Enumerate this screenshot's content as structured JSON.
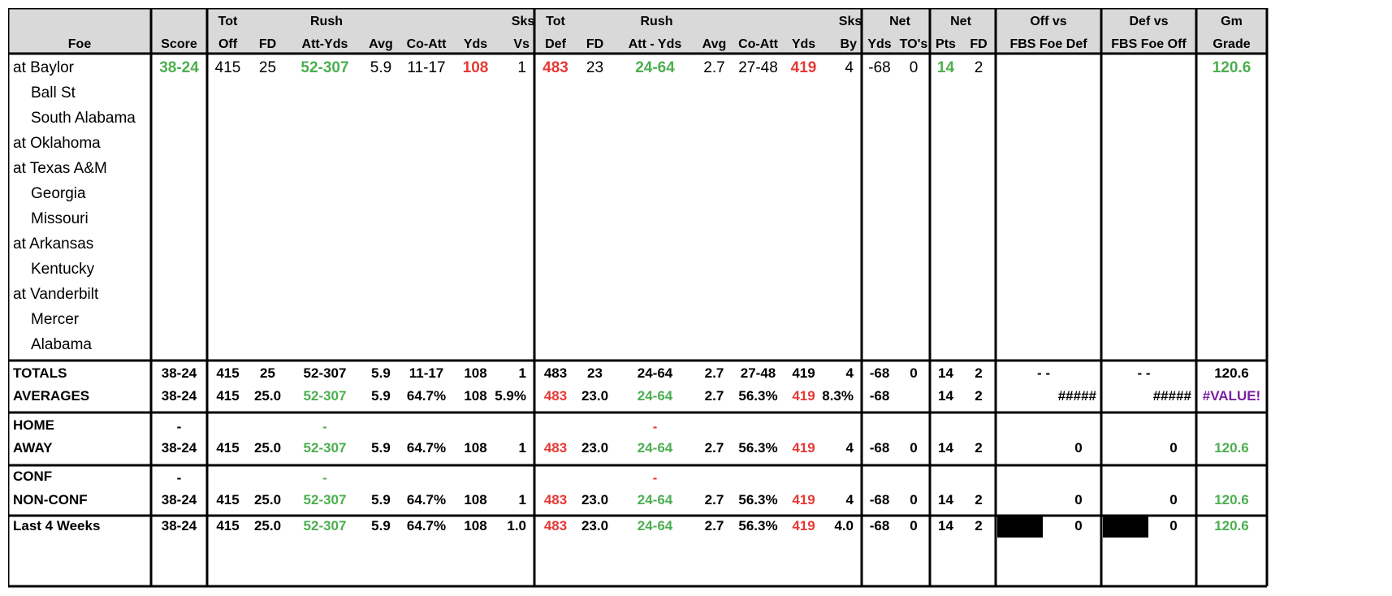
{
  "colors": {
    "header_bg": "#D9D9D9",
    "grid": "#000000",
    "green": "#4CAF50",
    "red": "#E53935",
    "purple": "#7B1FA2",
    "black_fill": "#000000",
    "yellow_marker": "#FFF59D",
    "text": "#000000"
  },
  "header": {
    "row1": [
      "",
      "",
      "Tot",
      "",
      "Rush",
      "",
      "",
      "",
      "Sks",
      "Tot",
      "",
      "Rush",
      "",
      "",
      "",
      "Sks",
      "Net",
      "",
      "Net",
      "",
      "Off vs",
      "Def vs",
      "Gm"
    ],
    "row2": [
      "Foe",
      "Score",
      "Off",
      "FD",
      "Att-Yds",
      "Avg",
      "Co-Att",
      "Yds",
      "Vs",
      "Def",
      "FD",
      "Att - Yds",
      "Avg",
      "Co-Att",
      "Yds",
      "By",
      "Yds",
      "TO's",
      "Pts",
      "FD",
      "FBS Foe Def",
      "FBS Foe Off",
      "Grade"
    ]
  },
  "games": [
    {
      "foe": "at Baylor",
      "indent": false,
      "cells": [
        {
          "t": "38-24",
          "c": "green",
          "b": true
        },
        {
          "t": "415"
        },
        {
          "t": "25"
        },
        {
          "t": "52-307",
          "c": "green",
          "b": true
        },
        {
          "t": "5.9"
        },
        {
          "t": "11-17"
        },
        {
          "t": "108",
          "c": "red",
          "b": true
        },
        {
          "t": "1"
        },
        {
          "t": "483",
          "c": "red",
          "b": true
        },
        {
          "t": "23"
        },
        {
          "t": "24-64",
          "c": "green",
          "b": true
        },
        {
          "t": "2.7"
        },
        {
          "t": "27-48"
        },
        {
          "t": "419",
          "c": "red",
          "b": true
        },
        {
          "t": "4"
        },
        {
          "t": "-68"
        },
        {
          "t": "0"
        },
        {
          "t": "14",
          "c": "green",
          "b": true
        },
        {
          "t": "2"
        },
        {
          "t": ""
        },
        {
          "t": ""
        },
        {
          "t": "120.6",
          "c": "green",
          "b": true
        }
      ]
    },
    {
      "foe": "Ball St",
      "indent": true,
      "cells": []
    },
    {
      "foe": "South Alabama",
      "indent": true,
      "cells": []
    },
    {
      "foe": "at Oklahoma",
      "indent": false,
      "cells": []
    },
    {
      "foe": "at Texas A&M",
      "indent": false,
      "cells": []
    },
    {
      "foe": "Georgia",
      "indent": true,
      "cells": []
    },
    {
      "foe": "Missouri",
      "indent": true,
      "cells": []
    },
    {
      "foe": "at Arkansas",
      "indent": false,
      "cells": []
    },
    {
      "foe": "Kentucky",
      "indent": true,
      "cells": []
    },
    {
      "foe": "at Vanderbilt",
      "indent": false,
      "cells": []
    },
    {
      "foe": "Mercer",
      "indent": true,
      "cells": []
    },
    {
      "foe": "Alabama",
      "indent": true,
      "cells": []
    }
  ],
  "summary": [
    {
      "label": "TOTALS",
      "group": "totals",
      "cells": [
        {
          "t": "38-24"
        },
        {
          "t": "415"
        },
        {
          "t": "25"
        },
        {
          "t": "52-307"
        },
        {
          "t": "5.9"
        },
        {
          "t": "11-17"
        },
        {
          "t": "108"
        },
        {
          "t": "1"
        },
        {
          "t": "483"
        },
        {
          "t": "23"
        },
        {
          "t": "24-64"
        },
        {
          "t": "2.7"
        },
        {
          "t": "27-48"
        },
        {
          "t": "419"
        },
        {
          "t": "4"
        },
        {
          "t": "-68"
        },
        {
          "t": "0"
        },
        {
          "t": "14"
        },
        {
          "t": "2"
        },
        {
          "t": "-         -",
          "a": "mid"
        },
        {
          "t": "-         -",
          "a": "mid"
        },
        {
          "t": "120.6"
        }
      ]
    },
    {
      "label": "AVERAGES",
      "group": "totals",
      "cells": [
        {
          "t": "38-24"
        },
        {
          "t": "415"
        },
        {
          "t": "25.0"
        },
        {
          "t": "52-307",
          "c": "green"
        },
        {
          "t": "5.9"
        },
        {
          "t": "64.7%"
        },
        {
          "t": "108"
        },
        {
          "t": "5.9%"
        },
        {
          "t": "483",
          "c": "red"
        },
        {
          "t": "23.0"
        },
        {
          "t": "24-64",
          "c": "green"
        },
        {
          "t": "2.7"
        },
        {
          "t": "56.3%"
        },
        {
          "t": "419",
          "c": "red"
        },
        {
          "t": "8.3%"
        },
        {
          "t": "-68"
        },
        {
          "t": ""
        },
        {
          "t": "14"
        },
        {
          "t": "2"
        },
        {
          "t": "#####",
          "a": "end"
        },
        {
          "t": "#####",
          "a": "end"
        },
        {
          "t": "#VALUE!",
          "c": "purple"
        }
      ]
    },
    {
      "label": "HOME",
      "group": "homeaway",
      "cells": [
        {
          "t": "-"
        },
        {
          "t": ""
        },
        {
          "t": ""
        },
        {
          "t": "-",
          "c": "green"
        },
        {
          "t": ""
        },
        {
          "t": ""
        },
        {
          "t": ""
        },
        {
          "t": ""
        },
        {
          "t": ""
        },
        {
          "t": ""
        },
        {
          "t": "-",
          "c": "red"
        },
        {
          "t": ""
        },
        {
          "t": ""
        },
        {
          "t": ""
        },
        {
          "t": ""
        },
        {
          "t": ""
        },
        {
          "t": ""
        },
        {
          "t": ""
        },
        {
          "t": ""
        },
        {
          "t": ""
        },
        {
          "t": ""
        },
        {
          "t": ""
        }
      ]
    },
    {
      "label": "AWAY",
      "group": "homeaway",
      "cells": [
        {
          "t": "38-24"
        },
        {
          "t": "415"
        },
        {
          "t": "25.0"
        },
        {
          "t": "52-307",
          "c": "green"
        },
        {
          "t": "5.9"
        },
        {
          "t": "64.7%"
        },
        {
          "t": "108"
        },
        {
          "t": "1"
        },
        {
          "t": "483",
          "c": "red"
        },
        {
          "t": "23.0"
        },
        {
          "t": "24-64",
          "c": "green"
        },
        {
          "t": "2.7"
        },
        {
          "t": "56.3%"
        },
        {
          "t": "419",
          "c": "red"
        },
        {
          "t": "4"
        },
        {
          "t": "-68"
        },
        {
          "t": "0"
        },
        {
          "t": "14"
        },
        {
          "t": "2"
        },
        {
          "t": "0",
          "a": "oc"
        },
        {
          "t": "0",
          "a": "oc"
        },
        {
          "t": "120.6",
          "c": "green"
        }
      ]
    },
    {
      "label": "CONF",
      "group": "conf",
      "cells": [
        {
          "t": "-"
        },
        {
          "t": ""
        },
        {
          "t": ""
        },
        {
          "t": "-",
          "c": "green"
        },
        {
          "t": ""
        },
        {
          "t": ""
        },
        {
          "t": ""
        },
        {
          "t": ""
        },
        {
          "t": ""
        },
        {
          "t": ""
        },
        {
          "t": "-",
          "c": "red"
        },
        {
          "t": ""
        },
        {
          "t": ""
        },
        {
          "t": ""
        },
        {
          "t": ""
        },
        {
          "t": ""
        },
        {
          "t": ""
        },
        {
          "t": ""
        },
        {
          "t": ""
        },
        {
          "t": ""
        },
        {
          "t": ""
        },
        {
          "t": ""
        }
      ]
    },
    {
      "label": "NON-CONF",
      "group": "conf",
      "cells": [
        {
          "t": "38-24"
        },
        {
          "t": "415"
        },
        {
          "t": "25.0"
        },
        {
          "t": "52-307",
          "c": "green"
        },
        {
          "t": "5.9"
        },
        {
          "t": "64.7%"
        },
        {
          "t": "108"
        },
        {
          "t": "1"
        },
        {
          "t": "483",
          "c": "red"
        },
        {
          "t": "23.0"
        },
        {
          "t": "24-64",
          "c": "green"
        },
        {
          "t": "2.7"
        },
        {
          "t": "56.3%"
        },
        {
          "t": "419",
          "c": "red"
        },
        {
          "t": "4"
        },
        {
          "t": "-68"
        },
        {
          "t": "0"
        },
        {
          "t": "14"
        },
        {
          "t": "2"
        },
        {
          "t": "0",
          "a": "oc"
        },
        {
          "t": "0",
          "a": "oc"
        },
        {
          "t": "120.6",
          "c": "green"
        }
      ]
    },
    {
      "label": "Last 4 Weeks",
      "group": "last4",
      "cells": [
        {
          "t": "38-24"
        },
        {
          "t": "415"
        },
        {
          "t": "25.0"
        },
        {
          "t": "52-307",
          "c": "green"
        },
        {
          "t": "5.9"
        },
        {
          "t": "64.7%"
        },
        {
          "t": "108"
        },
        {
          "t": "1.0"
        },
        {
          "t": "483",
          "c": "red"
        },
        {
          "t": "23.0"
        },
        {
          "t": "24-64",
          "c": "green"
        },
        {
          "t": "2.7"
        },
        {
          "t": "56.3%"
        },
        {
          "t": "419",
          "c": "red"
        },
        {
          "t": "4.0"
        },
        {
          "t": "-68"
        },
        {
          "t": "0"
        },
        {
          "t": "14"
        },
        {
          "t": "2"
        },
        {
          "t": "0",
          "a": "oc",
          "blk": true
        },
        {
          "t": "0",
          "a": "oc",
          "blk": true
        },
        {
          "t": "120.6",
          "c": "green"
        }
      ]
    }
  ]
}
